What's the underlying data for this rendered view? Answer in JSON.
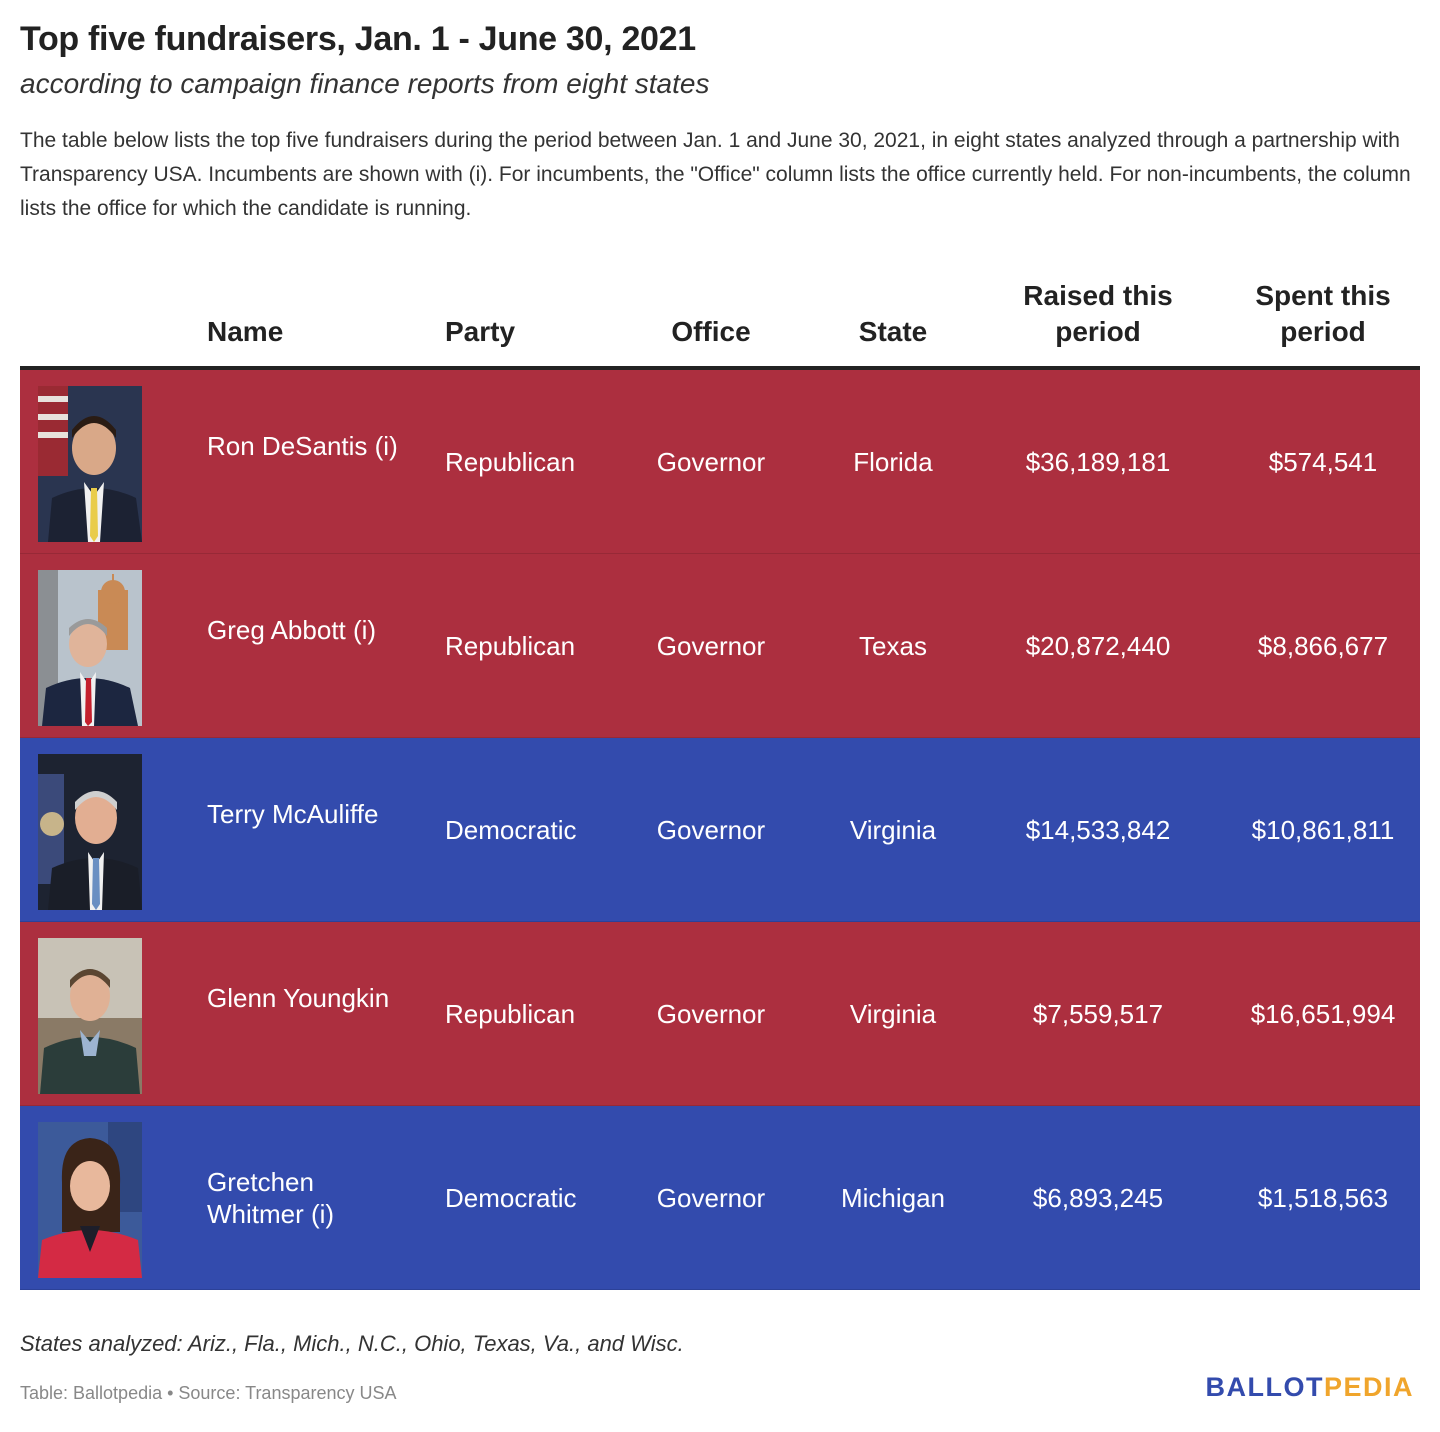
{
  "title": "Top five fundraisers, Jan. 1 - June 30, 2021",
  "subtitle": "according to campaign finance reports from eight states",
  "description": "The table below lists the top five fundraisers during the period between Jan. 1 and June 30, 2021, in eight states analyzed through a partnership with Transparency USA. Incumbents are shown with (i). For incumbents, the \"Office\" column lists the office currently held. For non-incumbents, the column lists the office for which the candidate is running.",
  "table": {
    "headers": {
      "name": "Name",
      "party": "Party",
      "office": "Office",
      "state": "State",
      "raised_line1": "Raised this",
      "raised_line2": "period",
      "spent_line1": "Spent this",
      "spent_line2": "period"
    },
    "rows": [
      {
        "name": "Ron DeSantis (i)",
        "party": "Republican",
        "office": "Governor",
        "state": "Florida",
        "raised": "$36,189,181",
        "spent": "$574,541",
        "row_color": "#ac2f3f"
      },
      {
        "name": "Greg Abbott (i)",
        "party": "Republican",
        "office": "Governor",
        "state": "Texas",
        "raised": "$20,872,440",
        "spent": "$8,866,677",
        "row_color": "#ac2f3f"
      },
      {
        "name": "Terry McAuliffe",
        "party": "Democratic",
        "office": "Governor",
        "state": "Virginia",
        "raised": "$14,533,842",
        "spent": "$10,861,811",
        "row_color": "#334bad"
      },
      {
        "name": "Glenn Youngkin",
        "party": "Republican",
        "office": "Governor",
        "state": "Virginia",
        "raised": "$7,559,517",
        "spent": "$16,651,994",
        "row_color": "#ac2f3f"
      },
      {
        "name": "Gretchen Whitmer (i)",
        "party": "Democratic",
        "office": "Governor",
        "state": "Michigan",
        "raised": "$6,893,245",
        "spent": "$1,518,563",
        "row_color": "#334bad"
      }
    ]
  },
  "note": "States analyzed: Ariz., Fla., Mich., N.C., Ohio, Texas, Va., and Wisc.",
  "source": "Table: Ballotpedia • Source: Transparency USA",
  "logo": {
    "part1": "BALLOT",
    "part2": "PEDIA"
  },
  "colors": {
    "republican": "#ac2f3f",
    "democratic": "#334bad",
    "logo_blue": "#334bad",
    "logo_gold": "#f0a52c"
  }
}
